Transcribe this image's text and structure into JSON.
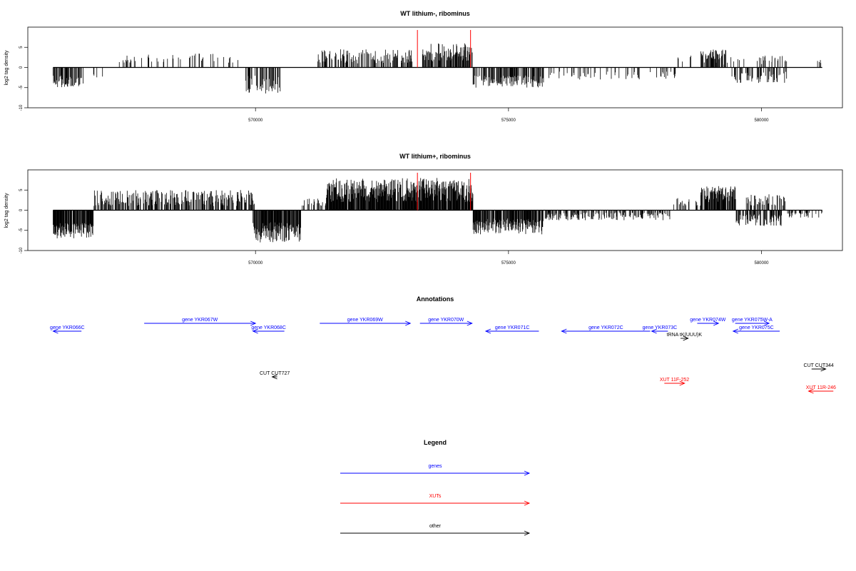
{
  "colors": {
    "genes": "#0000ff",
    "XUTs": "#ff0000",
    "other": "#000000",
    "marker": "#ff0000",
    "bars": "#000000"
  },
  "chart_data": [
    {
      "type": "bar",
      "title": "WT lithium-, ribominus",
      "ylabel": "log2 tag density",
      "ylim": [
        -10,
        10
      ],
      "yticks": [
        -10,
        -5,
        0,
        5
      ],
      "xlim": [
        565500,
        581600
      ],
      "xticks": [
        570000,
        575000,
        580000
      ],
      "markers": [
        573200,
        574250
      ],
      "baseline": [
        566000,
        581200
      ],
      "density": "low"
    },
    {
      "type": "bar",
      "title": "WT lithium+, ribominus",
      "ylabel": "log2 tag density",
      "ylim": [
        -10,
        10
      ],
      "yticks": [
        -10,
        -5,
        0,
        5
      ],
      "xlim": [
        565500,
        581600
      ],
      "xticks": [
        570000,
        575000,
        580000
      ],
      "markers": [
        573200,
        574250
      ],
      "baseline": [
        566000,
        581200
      ],
      "density": "high"
    }
  ],
  "annotations": {
    "title": "Annotations",
    "features": [
      {
        "label": "gene YKR066C",
        "type": "genes",
        "strand": "-",
        "start": 566000,
        "end": 566560,
        "row": 1
      },
      {
        "label": "gene YKR067W",
        "type": "genes",
        "strand": "+",
        "start": 567800,
        "end": 570000,
        "row": 0
      },
      {
        "label": "gene YKR068C",
        "type": "genes",
        "strand": "-",
        "start": 569950,
        "end": 570570,
        "row": 1
      },
      {
        "label": "gene YKR069W",
        "type": "genes",
        "strand": "+",
        "start": 571270,
        "end": 573060,
        "row": 0
      },
      {
        "label": "gene YKR070W",
        "type": "genes",
        "strand": "+",
        "start": 573250,
        "end": 574280,
        "row": 0
      },
      {
        "label": "gene YKR071C",
        "type": "genes",
        "strand": "-",
        "start": 574550,
        "end": 575600,
        "row": 1
      },
      {
        "label": "gene YKR072C",
        "type": "genes",
        "strand": "-",
        "start": 576050,
        "end": 577800,
        "row": 1
      },
      {
        "label": "gene YKR073C",
        "type": "genes",
        "strand": "-",
        "start": 577830,
        "end": 578150,
        "row": 1
      },
      {
        "label": "gene YKR074W",
        "type": "genes",
        "strand": "+",
        "start": 578730,
        "end": 579150,
        "row": 0
      },
      {
        "label": "gene YKR075W-A",
        "type": "genes",
        "strand": "+",
        "start": 579480,
        "end": 580150,
        "row": 0
      },
      {
        "label": "gene YKR075C",
        "type": "genes",
        "strand": "-",
        "start": 579440,
        "end": 580360,
        "row": 1
      },
      {
        "label": "tRNA tK(UUU)K",
        "type": "other",
        "strand": "+",
        "start": 578400,
        "end": 578550,
        "row": 2
      },
      {
        "label": "CUT CUT727",
        "type": "other",
        "strand": "-",
        "start": 570330,
        "end": 570430,
        "row": 6
      },
      {
        "label": "CUT CUT344",
        "type": "other",
        "strand": "+",
        "start": 580990,
        "end": 581270,
        "row": 5
      },
      {
        "label": "XUT 11F-252",
        "type": "XUTs",
        "strand": "+",
        "start": 578080,
        "end": 578480,
        "row": 7
      },
      {
        "label": "XUT 11R-246",
        "type": "XUTs",
        "strand": "-",
        "start": 580930,
        "end": 581420,
        "row": 8
      }
    ]
  },
  "legend": {
    "title": "Legend",
    "items": [
      {
        "label": "genes",
        "type": "genes"
      },
      {
        "label": "XUTs",
        "type": "XUTs"
      },
      {
        "label": "other",
        "type": "other"
      }
    ]
  }
}
